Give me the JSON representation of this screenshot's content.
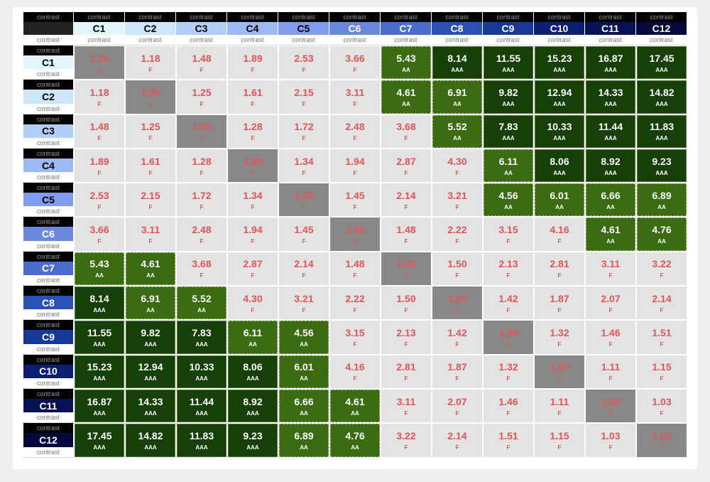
{
  "corner": {
    "top": "contrast",
    "bottom": "contrast"
  },
  "colors": [
    {
      "label": "C1",
      "top": "contrast",
      "bottom": "contrast",
      "color": "#e0f8fc"
    },
    {
      "label": "C2",
      "top": "contrast",
      "bottom": "contrast",
      "color": "#cde6fb"
    },
    {
      "label": "C3",
      "top": "contrast",
      "bottom": "contrast",
      "color": "#b2d0f6"
    },
    {
      "label": "C4",
      "top": "contrast",
      "bottom": "contrast",
      "color": "#9cbaf2"
    },
    {
      "label": "C5",
      "top": "contrast",
      "bottom": "contrast",
      "color": "#809ded"
    },
    {
      "label": "C6",
      "top": "contrast",
      "bottom": "contrast",
      "color": "#6a88de"
    },
    {
      "label": "C7",
      "top": "contrast",
      "bottom": "contrast",
      "color": "#4a6ccd"
    },
    {
      "label": "C8",
      "top": "contrast",
      "bottom": "contrast",
      "color": "#2a52b4"
    },
    {
      "label": "C9",
      "top": "contrast",
      "bottom": "contrast",
      "color": "#173996"
    },
    {
      "label": "C10",
      "top": "contrast",
      "bottom": "contrast",
      "color": "#0b1e74"
    },
    {
      "label": "C11",
      "top": "contrast",
      "bottom": "contrast",
      "color": "#061254"
    },
    {
      "label": "C12",
      "top": "contrast",
      "bottom": "contrast",
      "color": "#03093a"
    }
  ],
  "rows": [
    [
      [
        "1.00",
        "F"
      ],
      [
        "1.18",
        "F"
      ],
      [
        "1.48",
        "F"
      ],
      [
        "1.89",
        "F"
      ],
      [
        "2.53",
        "F"
      ],
      [
        "3.66",
        "F"
      ],
      [
        "5.43",
        "AA"
      ],
      [
        "8.14",
        "AAA"
      ],
      [
        "11.55",
        "AAA"
      ],
      [
        "15.23",
        "AAA"
      ],
      [
        "16.87",
        "AAA"
      ],
      [
        "17.45",
        "AAA"
      ]
    ],
    [
      [
        "1.18",
        "F"
      ],
      [
        "1.00",
        "F"
      ],
      [
        "1.25",
        "F"
      ],
      [
        "1.61",
        "F"
      ],
      [
        "2.15",
        "F"
      ],
      [
        "3.11",
        "F"
      ],
      [
        "4.61",
        "AA"
      ],
      [
        "6.91",
        "AA"
      ],
      [
        "9.82",
        "AAA"
      ],
      [
        "12.94",
        "AAA"
      ],
      [
        "14.33",
        "AAA"
      ],
      [
        "14.82",
        "AAA"
      ]
    ],
    [
      [
        "1.48",
        "F"
      ],
      [
        "1.25",
        "F"
      ],
      [
        "1.00",
        "F"
      ],
      [
        "1.28",
        "F"
      ],
      [
        "1.72",
        "F"
      ],
      [
        "2.48",
        "F"
      ],
      [
        "3.68",
        "F"
      ],
      [
        "5.52",
        "AA"
      ],
      [
        "7.83",
        "AAA"
      ],
      [
        "10.33",
        "AAA"
      ],
      [
        "11.44",
        "AAA"
      ],
      [
        "11.83",
        "AAA"
      ]
    ],
    [
      [
        "1.89",
        "F"
      ],
      [
        "1.61",
        "F"
      ],
      [
        "1.28",
        "F"
      ],
      [
        "1.00",
        "F"
      ],
      [
        "1.34",
        "F"
      ],
      [
        "1.94",
        "F"
      ],
      [
        "2.87",
        "F"
      ],
      [
        "4.30",
        "F"
      ],
      [
        "6.11",
        "AA"
      ],
      [
        "8.06",
        "AAA"
      ],
      [
        "8.92",
        "AAA"
      ],
      [
        "9.23",
        "AAA"
      ]
    ],
    [
      [
        "2.53",
        "F"
      ],
      [
        "2.15",
        "F"
      ],
      [
        "1.72",
        "F"
      ],
      [
        "1.34",
        "F"
      ],
      [
        "1.00",
        "F"
      ],
      [
        "1.45",
        "F"
      ],
      [
        "2.14",
        "F"
      ],
      [
        "3.21",
        "F"
      ],
      [
        "4.56",
        "AA"
      ],
      [
        "6.01",
        "AA"
      ],
      [
        "6.66",
        "AA"
      ],
      [
        "6.89",
        "AA"
      ]
    ],
    [
      [
        "3.66",
        "F"
      ],
      [
        "3.11",
        "F"
      ],
      [
        "2.48",
        "F"
      ],
      [
        "1.94",
        "F"
      ],
      [
        "1.45",
        "F"
      ],
      [
        "1.00",
        "F"
      ],
      [
        "1.48",
        "F"
      ],
      [
        "2.22",
        "F"
      ],
      [
        "3.15",
        "F"
      ],
      [
        "4.16",
        "F"
      ],
      [
        "4.61",
        "AA"
      ],
      [
        "4.76",
        "AA"
      ]
    ],
    [
      [
        "5.43",
        "AA"
      ],
      [
        "4.61",
        "AA"
      ],
      [
        "3.68",
        "F"
      ],
      [
        "2.87",
        "F"
      ],
      [
        "2.14",
        "F"
      ],
      [
        "1.48",
        "F"
      ],
      [
        "1.00",
        "F"
      ],
      [
        "1.50",
        "F"
      ],
      [
        "2.13",
        "F"
      ],
      [
        "2.81",
        "F"
      ],
      [
        "3.11",
        "F"
      ],
      [
        "3.22",
        "F"
      ]
    ],
    [
      [
        "8.14",
        "AAA"
      ],
      [
        "6.91",
        "AA"
      ],
      [
        "5.52",
        "AA"
      ],
      [
        "4.30",
        "F"
      ],
      [
        "3.21",
        "F"
      ],
      [
        "2.22",
        "F"
      ],
      [
        "1.50",
        "F"
      ],
      [
        "1.00",
        "F"
      ],
      [
        "1.42",
        "F"
      ],
      [
        "1.87",
        "F"
      ],
      [
        "2.07",
        "F"
      ],
      [
        "2.14",
        "F"
      ]
    ],
    [
      [
        "11.55",
        "AAA"
      ],
      [
        "9.82",
        "AAA"
      ],
      [
        "7.83",
        "AAA"
      ],
      [
        "6.11",
        "AA"
      ],
      [
        "4.56",
        "AA"
      ],
      [
        "3.15",
        "F"
      ],
      [
        "2.13",
        "F"
      ],
      [
        "1.42",
        "F"
      ],
      [
        "1.00",
        "F"
      ],
      [
        "1.32",
        "F"
      ],
      [
        "1.46",
        "F"
      ],
      [
        "1.51",
        "F"
      ]
    ],
    [
      [
        "15.23",
        "AAA"
      ],
      [
        "12.94",
        "AAA"
      ],
      [
        "10.33",
        "AAA"
      ],
      [
        "8.06",
        "AAA"
      ],
      [
        "6.01",
        "AA"
      ],
      [
        "4.16",
        "F"
      ],
      [
        "2.81",
        "F"
      ],
      [
        "1.87",
        "F"
      ],
      [
        "1.32",
        "F"
      ],
      [
        "1.00",
        "F"
      ],
      [
        "1.11",
        "F"
      ],
      [
        "1.15",
        "F"
      ]
    ],
    [
      [
        "16.87",
        "AAA"
      ],
      [
        "14.33",
        "AAA"
      ],
      [
        "11.44",
        "AAA"
      ],
      [
        "8.92",
        "AAA"
      ],
      [
        "6.66",
        "AA"
      ],
      [
        "4.61",
        "AA"
      ],
      [
        "3.11",
        "F"
      ],
      [
        "2.07",
        "F"
      ],
      [
        "1.46",
        "F"
      ],
      [
        "1.11",
        "F"
      ],
      [
        "1.00",
        "F"
      ],
      [
        "1.03",
        "F"
      ]
    ],
    [
      [
        "17.45",
        "AAA"
      ],
      [
        "14.82",
        "AAA"
      ],
      [
        "11.83",
        "AAA"
      ],
      [
        "9.23",
        "AAA"
      ],
      [
        "6.89",
        "AA"
      ],
      [
        "4.76",
        "AA"
      ],
      [
        "3.22",
        "F"
      ],
      [
        "2.14",
        "F"
      ],
      [
        "1.51",
        "F"
      ],
      [
        "1.15",
        "F"
      ],
      [
        "1.03",
        "F"
      ],
      [
        "1.00",
        "F"
      ]
    ]
  ]
}
